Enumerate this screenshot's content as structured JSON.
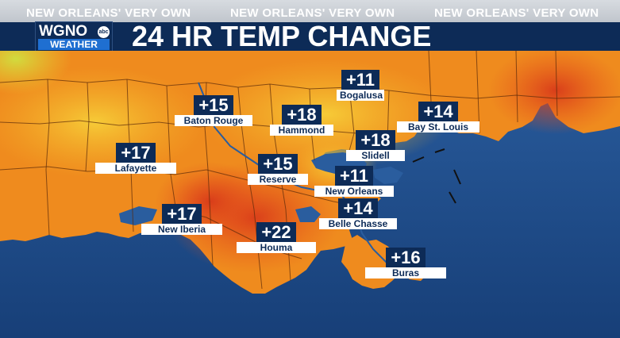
{
  "tagline": "NEW ORLEANS' VERY OWN",
  "logo": {
    "station": "WGNO",
    "network": "abc",
    "sub": "WEATHER"
  },
  "title": "24 HR TEMP CHANGE",
  "colors": {
    "header": "#0d2b57",
    "ocean": "#1e4f8f",
    "land_warm": "#f08a1c",
    "land_hot": "#e0461c",
    "land_mild": "#f6c833"
  },
  "cities": [
    {
      "id": "bogalusa",
      "name": "Bogalusa",
      "value": "+11"
    },
    {
      "id": "baton-rouge",
      "name": "Baton Rouge",
      "value": "+15"
    },
    {
      "id": "hammond",
      "name": "Hammond",
      "value": "+18"
    },
    {
      "id": "bay-st-louis",
      "name": "Bay St. Louis",
      "value": "+14"
    },
    {
      "id": "lafayette",
      "name": "Lafayette",
      "value": "+17"
    },
    {
      "id": "slidell",
      "name": "Slidell",
      "value": "+18"
    },
    {
      "id": "reserve",
      "name": "Reserve",
      "value": "+15"
    },
    {
      "id": "new-orleans",
      "name": "New Orleans",
      "value": "+11"
    },
    {
      "id": "new-iberia",
      "name": "New Iberia",
      "value": "+17"
    },
    {
      "id": "belle-chasse",
      "name": "Belle Chasse",
      "value": "+14"
    },
    {
      "id": "houma",
      "name": "Houma",
      "value": "+22"
    },
    {
      "id": "buras",
      "name": "Buras",
      "value": "+16"
    }
  ]
}
